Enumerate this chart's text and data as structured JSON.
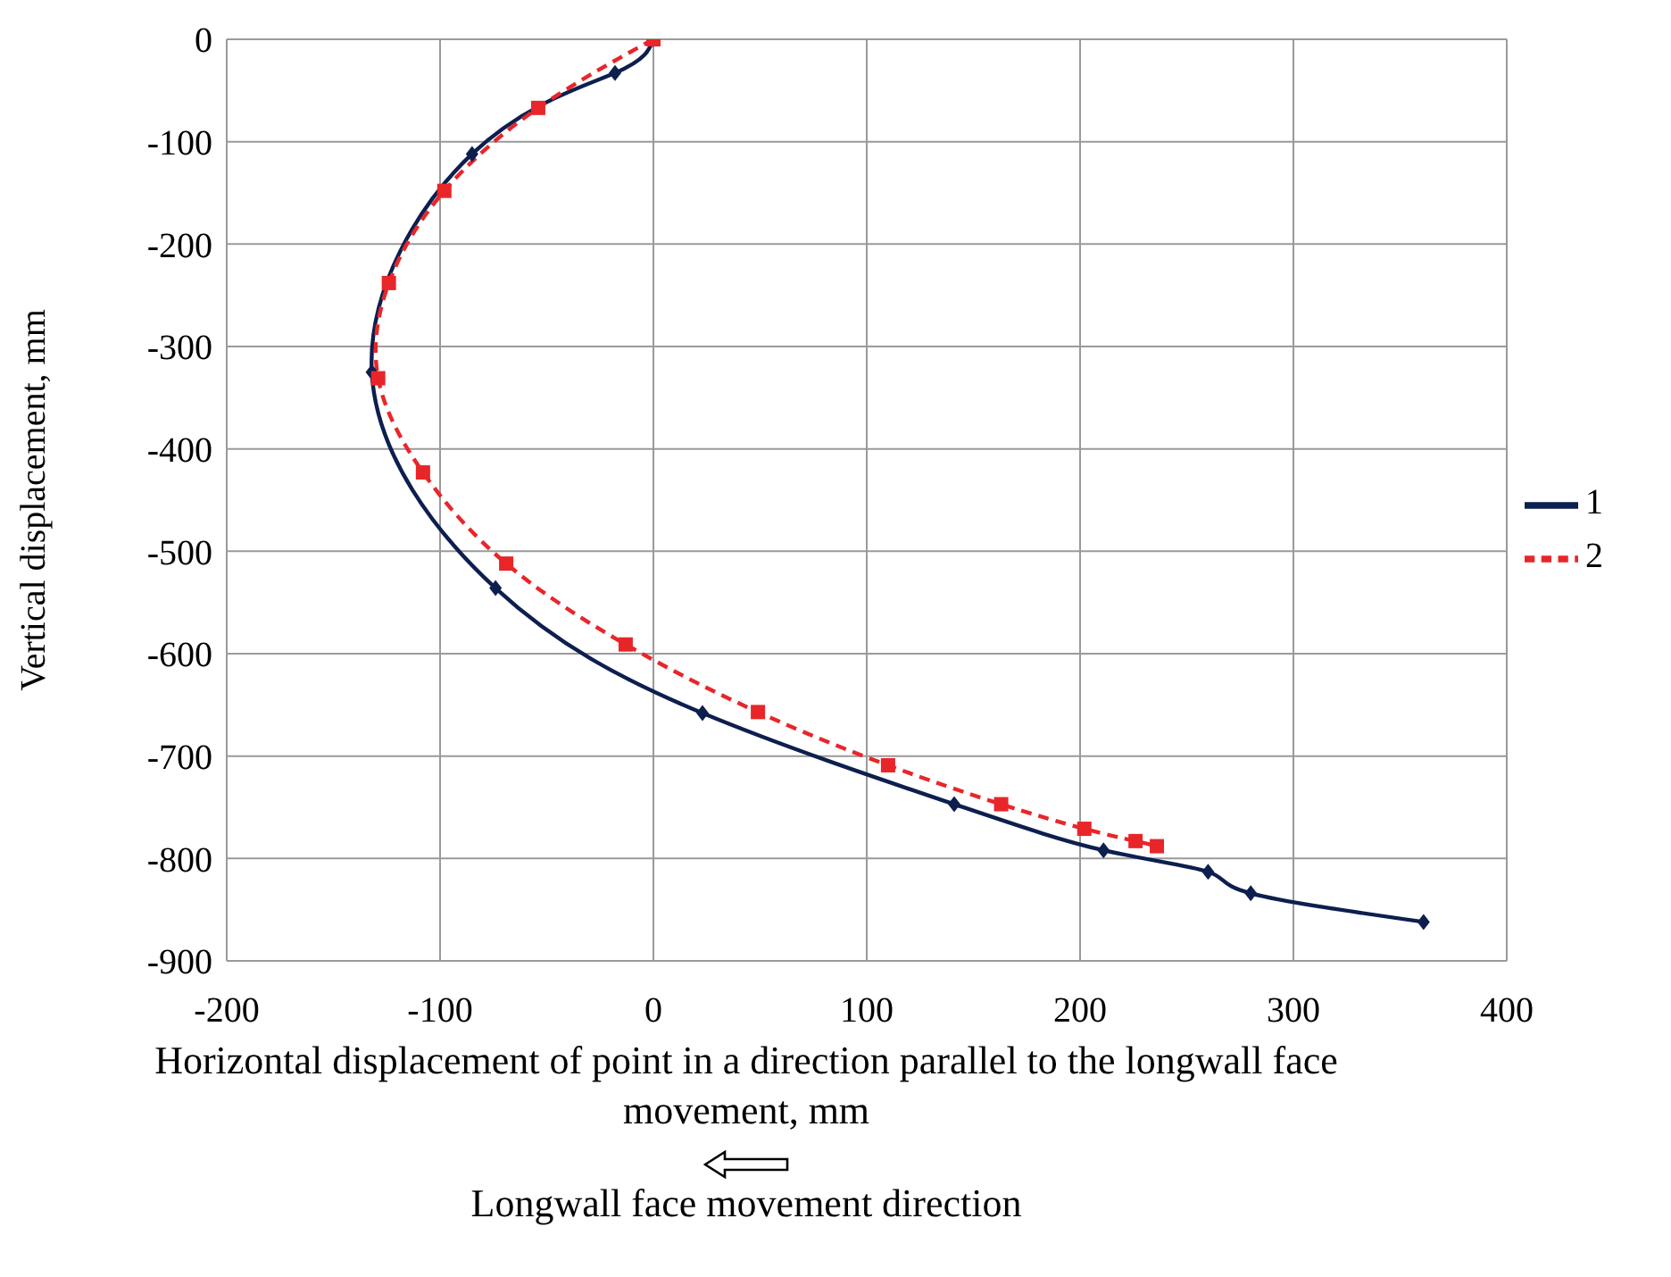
{
  "chart_data": {
    "type": "line",
    "xlabel": "Horizontal displacement of point in a direction parallel to the longwall face movement, mm",
    "ylabel": "Vertical displacement, mm",
    "xlim": [
      -200,
      400
    ],
    "xticks": [
      -200,
      -100,
      0,
      100,
      200,
      300,
      400
    ],
    "ylim": [
      -900,
      0
    ],
    "yticks": [
      -900,
      -800,
      -700,
      -600,
      -500,
      -400,
      -300,
      -200,
      -100,
      0
    ],
    "grid": true,
    "legend": "right",
    "annotations": [
      "Longwall face movement direction"
    ],
    "series": [
      {
        "name": "1",
        "color": "#0d1f4f",
        "marker": "diamond",
        "line_style": "solid",
        "x": [
          0,
          -18,
          -85,
          -132,
          -74,
          23,
          141,
          211,
          260,
          280,
          361
        ],
        "values": [
          0,
          -33,
          -112,
          -325,
          -536,
          -658,
          -747,
          -792,
          -813,
          -834,
          -862
        ]
      },
      {
        "name": "2",
        "color": "#e8262a",
        "marker": "square",
        "line_style": "dashed",
        "x": [
          0,
          -54,
          -98,
          -124,
          -129,
          -108,
          -69,
          -13,
          49,
          110,
          163,
          202,
          226,
          236
        ],
        "values": [
          0,
          -67,
          -148,
          -238,
          -331,
          -423,
          -512,
          -591,
          -657,
          -709,
          -747,
          -771,
          -783,
          -788
        ]
      }
    ]
  }
}
